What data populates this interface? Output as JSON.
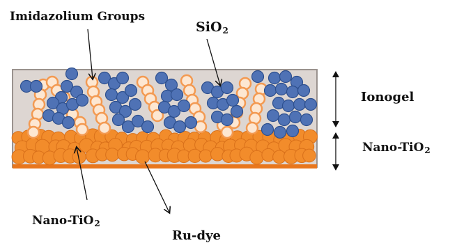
{
  "labels": {
    "imidazolium": "Imidazolium Groups",
    "sio2_main": "SiO",
    "sio2_sub": "2",
    "ionogel": "Ionogel",
    "nano_tio2_right_main": "Nano-TiO",
    "nano_tio2_right_sub": "2",
    "nano_tio2_bottom_main": "Nano-TiO",
    "nano_tio2_bottom_sub": "2",
    "ru_dye": "Ru-dye"
  },
  "colors": {
    "ionogel_fill": "#ddd6d2",
    "ionogel_border": "#9a928e",
    "sio2_blue": "#4f72b5",
    "sio2_blue_edge": "#2d4f8e",
    "imidazolium_ring": "#f39a52",
    "imidazolium_fill": "#fde7d2",
    "tio2_orange": "#f28c2b",
    "tio2_orange_dark": "#d9701a",
    "base_line": "#e8761c",
    "arrow": "#111111"
  }
}
